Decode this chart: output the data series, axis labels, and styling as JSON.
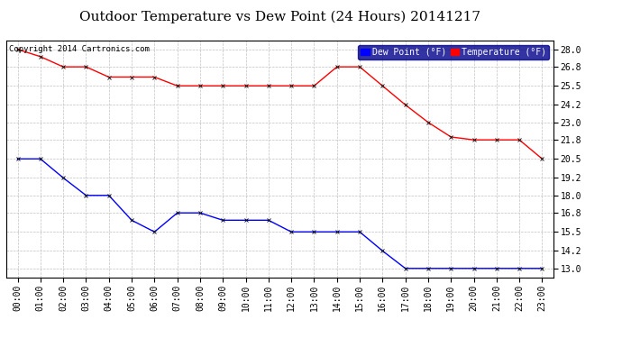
{
  "title": "Outdoor Temperature vs Dew Point (24 Hours) 20141217",
  "copyright": "Copyright 2014 Cartronics.com",
  "x_labels": [
    "00:00",
    "01:00",
    "02:00",
    "03:00",
    "04:00",
    "05:00",
    "06:00",
    "07:00",
    "08:00",
    "09:00",
    "10:00",
    "11:00",
    "12:00",
    "13:00",
    "14:00",
    "15:00",
    "16:00",
    "17:00",
    "18:00",
    "19:00",
    "20:00",
    "21:00",
    "22:00",
    "23:00"
  ],
  "temperature": [
    28.0,
    27.5,
    26.8,
    26.8,
    26.1,
    26.1,
    26.1,
    25.5,
    25.5,
    25.5,
    25.5,
    25.5,
    25.5,
    25.5,
    26.8,
    26.8,
    25.5,
    24.2,
    23.0,
    22.0,
    21.8,
    21.8,
    21.8,
    20.5
  ],
  "dew_point": [
    20.5,
    20.5,
    19.2,
    18.0,
    18.0,
    16.3,
    15.5,
    16.8,
    16.8,
    16.3,
    16.3,
    16.3,
    15.5,
    15.5,
    15.5,
    15.5,
    14.2,
    13.0,
    13.0,
    13.0,
    13.0,
    13.0,
    13.0,
    13.0
  ],
  "temp_color": "#ff0000",
  "dew_color": "#0000ff",
  "bg_color": "#ffffff",
  "grid_color": "#c0c0c0",
  "ylim_min": 12.4,
  "ylim_max": 28.6,
  "yticks": [
    13.0,
    14.2,
    15.5,
    16.8,
    18.0,
    19.2,
    20.5,
    21.8,
    23.0,
    24.2,
    25.5,
    26.8,
    28.0
  ],
  "legend_dew_label": "Dew Point (°F)",
  "legend_temp_label": "Temperature (°F)",
  "legend_bg": "#00008b",
  "markersize": 3,
  "linewidth": 1.0,
  "title_fontsize": 11,
  "tick_fontsize": 7,
  "legend_fontsize": 7,
  "copyright_fontsize": 6.5
}
